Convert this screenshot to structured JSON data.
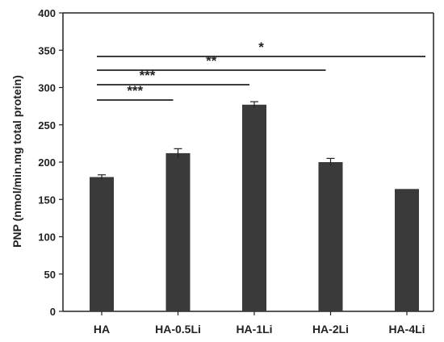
{
  "chart_data": {
    "type": "bar",
    "categories": [
      "HA",
      "HA-0.5Li",
      "HA-1Li",
      "HA-2Li",
      "HA-4Li"
    ],
    "values": [
      180,
      212,
      277,
      200,
      164
    ],
    "errors": [
      3,
      6,
      4,
      5,
      0
    ],
    "ylabel": "PNP (nmol/min.mg total protein)",
    "xlabel": "",
    "ylim": [
      0,
      400
    ],
    "yticks": [
      0,
      50,
      100,
      150,
      200,
      250,
      300,
      350,
      400
    ],
    "bar_color": "#3a3a3a",
    "grid": false,
    "significance": [
      {
        "from": "HA",
        "to": "HA-0.5Li",
        "label": "***",
        "y": 323
      },
      {
        "from": "HA",
        "to": "HA-1Li",
        "label": "***",
        "y": 302
      },
      {
        "from": "HA",
        "to": "HA-2Li",
        "label": "**",
        "y": 323.5
      },
      {
        "from": "HA",
        "to": "HA-4Li",
        "label": "*",
        "y": 341
      }
    ]
  }
}
